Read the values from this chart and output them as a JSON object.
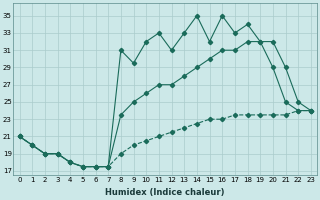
{
  "xlabel": "Humidex (Indice chaleur)",
  "background_color": "#cce8e8",
  "grid_color": "#aacccc",
  "line_color": "#1a6b5a",
  "xlim": [
    -0.5,
    23.5
  ],
  "ylim": [
    16.5,
    36.5
  ],
  "yticks": [
    17,
    19,
    21,
    23,
    25,
    27,
    29,
    31,
    33,
    35
  ],
  "xticks": [
    0,
    1,
    2,
    3,
    4,
    5,
    6,
    7,
    8,
    9,
    10,
    11,
    12,
    13,
    14,
    15,
    16,
    17,
    18,
    19,
    20,
    21,
    22,
    23
  ],
  "line1_x": [
    0,
    1,
    2,
    3,
    4,
    5,
    6,
    7,
    8,
    9,
    10,
    11,
    12,
    13,
    14,
    15,
    16,
    17,
    18,
    19,
    20,
    21,
    22,
    23
  ],
  "line1_y": [
    21,
    20,
    19,
    19,
    18,
    17.5,
    17.5,
    17.5,
    31,
    29.5,
    32,
    33,
    31,
    33,
    35,
    32,
    35,
    33,
    34,
    32,
    29,
    25,
    24,
    24
  ],
  "line2_x": [
    0,
    1,
    2,
    3,
    4,
    5,
    6,
    7,
    8,
    9,
    10,
    11,
    12,
    13,
    14,
    15,
    16,
    17,
    18,
    19,
    20,
    21,
    22,
    23
  ],
  "line2_y": [
    21,
    20,
    19,
    19,
    18,
    17.5,
    17.5,
    17.5,
    23.5,
    25,
    26,
    27,
    27,
    28,
    29,
    30,
    31,
    31,
    32,
    32,
    32,
    29,
    25,
    24
  ],
  "line3_x": [
    0,
    1,
    2,
    3,
    4,
    5,
    6,
    7,
    8,
    9,
    10,
    11,
    12,
    13,
    14,
    15,
    16,
    17,
    18,
    19,
    20,
    21,
    22,
    23
  ],
  "line3_y": [
    21,
    20,
    19,
    19,
    18,
    17.5,
    17.5,
    17.5,
    19,
    20,
    20.5,
    21,
    21.5,
    22,
    22.5,
    23,
    23,
    23.5,
    23.5,
    23.5,
    23.5,
    23.5,
    24,
    24
  ],
  "tick_fontsize": 5,
  "xlabel_fontsize": 6
}
